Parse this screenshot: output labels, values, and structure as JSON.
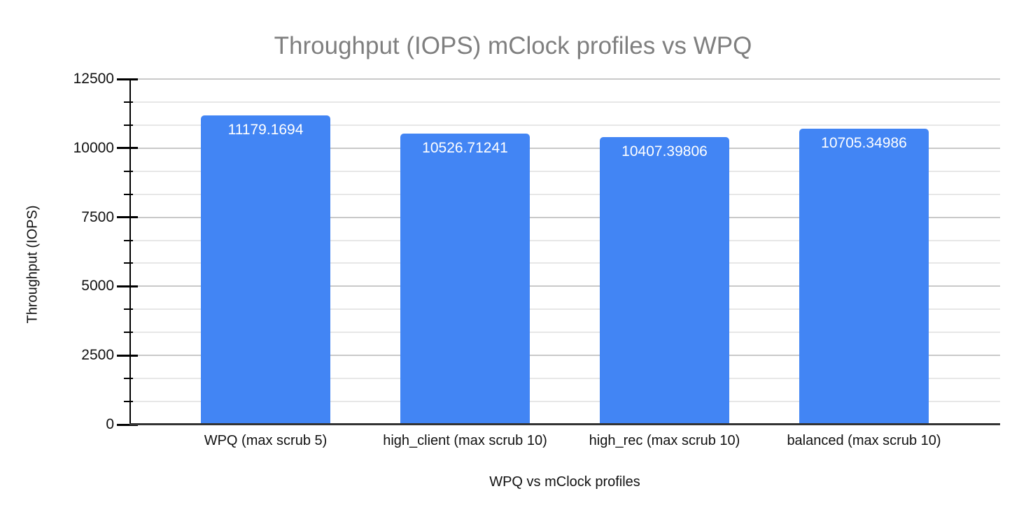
{
  "chart_data": {
    "type": "bar",
    "title": "Throughput (IOPS) mClock profiles vs WPQ",
    "xlabel": "WPQ vs mClock profiles",
    "ylabel": "Throughput (IOPS)",
    "categories": [
      "WPQ (max scrub 5)",
      "high_client (max scrub 10)",
      "high_rec (max scrub 10)",
      "balanced (max scrub 10)"
    ],
    "values": [
      11179.1694,
      10526.71241,
      10407.39806,
      10705.34986
    ],
    "value_labels": [
      "11179.1694",
      "10526.71241",
      "10407.39806",
      "10705.34986"
    ],
    "ylim": [
      0,
      12500
    ],
    "y_major_step": 2500,
    "y_minor_divisions": 3,
    "y_tick_labels": [
      "0",
      "2500",
      "5000",
      "7500",
      "10000",
      "12500"
    ],
    "grid": true,
    "legend": "none",
    "colors": {
      "bar": "#4285f4",
      "bar_label": "#ffffff",
      "title": "#7f7f7f",
      "axis_text": "#111111",
      "grid_major": "#c9c9c9",
      "grid_minor": "#e7e7e7",
      "axis_line": "#000000",
      "baseline": "#333333"
    }
  }
}
